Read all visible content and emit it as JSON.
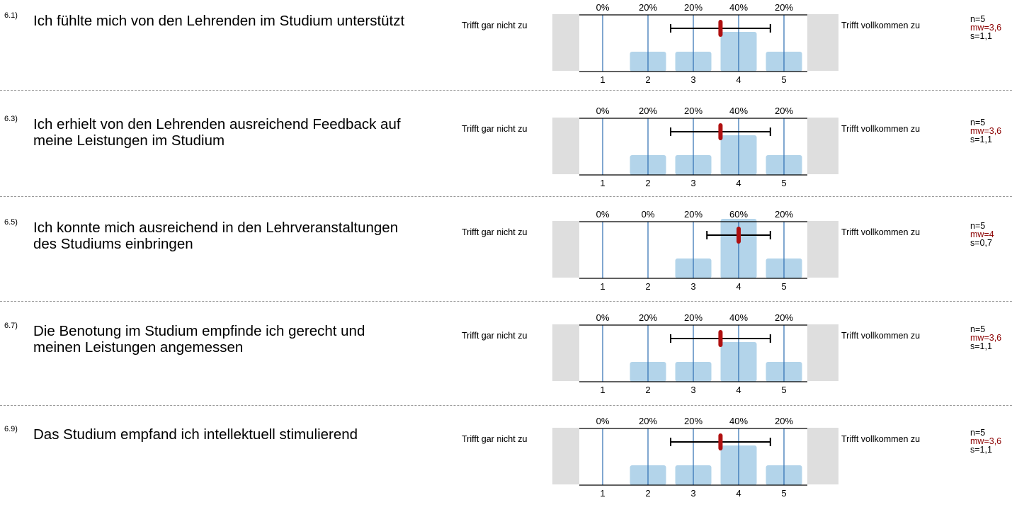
{
  "scale": {
    "left_label": "Trifft gar nicht zu",
    "right_label": "Trifft vollkommen zu",
    "ticks": [
      "1",
      "2",
      "3",
      "4",
      "5"
    ]
  },
  "items": [
    {
      "number": "6.1)",
      "text": "Ich fühlte mich von den Lehrenden im Studium unterstützt",
      "n": "n=5",
      "mw": "mw=3,6",
      "s": "s=1,1"
    },
    {
      "number": "6.3)",
      "text": "Ich erhielt von den Lehrenden ausreichend Feedback auf meine Leistungen im Studium",
      "n": "n=5",
      "mw": "mw=3,6",
      "s": "s=1,1"
    },
    {
      "number": "6.5)",
      "text": "Ich konnte mich ausreichend in den Lehrveranstaltungen des Studiums einbringen",
      "n": "n=5",
      "mw": "mw=4",
      "s": "s=0,7"
    },
    {
      "number": "6.7)",
      "text": "Die Benotung im Studium empfinde ich gerecht und meinen Leistungen angemessen",
      "n": "n=5",
      "mw": "mw=3,6",
      "s": "s=1,1"
    },
    {
      "number": "6.9)",
      "text": "Das Studium empfand ich intellektuell stimulierend",
      "n": "n=5",
      "mw": "mw=3,6",
      "s": "s=1,1"
    }
  ],
  "chart_data": [
    {
      "type": "bar",
      "categories": [
        "1",
        "2",
        "3",
        "4",
        "5"
      ],
      "values": [
        0,
        20,
        20,
        40,
        20
      ],
      "labels": [
        "0%",
        "20%",
        "20%",
        "40%",
        "20%"
      ],
      "mean": 3.6,
      "sd": 1.1,
      "n": 5,
      "ylim": [
        0,
        100
      ]
    },
    {
      "type": "bar",
      "categories": [
        "1",
        "2",
        "3",
        "4",
        "5"
      ],
      "values": [
        0,
        20,
        20,
        40,
        20
      ],
      "labels": [
        "0%",
        "20%",
        "20%",
        "40%",
        "20%"
      ],
      "mean": 3.6,
      "sd": 1.1,
      "n": 5,
      "ylim": [
        0,
        100
      ]
    },
    {
      "type": "bar",
      "categories": [
        "1",
        "2",
        "3",
        "4",
        "5"
      ],
      "values": [
        0,
        0,
        20,
        60,
        20
      ],
      "labels": [
        "0%",
        "0%",
        "20%",
        "60%",
        "20%"
      ],
      "mean": 4.0,
      "sd": 0.7,
      "n": 5,
      "ylim": [
        0,
        100
      ]
    },
    {
      "type": "bar",
      "categories": [
        "1",
        "2",
        "3",
        "4",
        "5"
      ],
      "values": [
        0,
        20,
        20,
        40,
        20
      ],
      "labels": [
        "0%",
        "20%",
        "20%",
        "40%",
        "20%"
      ],
      "mean": 3.6,
      "sd": 1.1,
      "n": 5,
      "ylim": [
        0,
        100
      ]
    },
    {
      "type": "bar",
      "categories": [
        "1",
        "2",
        "3",
        "4",
        "5"
      ],
      "values": [
        0,
        20,
        20,
        40,
        20
      ],
      "labels": [
        "0%",
        "20%",
        "20%",
        "40%",
        "20%"
      ],
      "mean": 3.6,
      "sd": 1.1,
      "n": 5,
      "ylim": [
        0,
        100
      ]
    }
  ],
  "colors": {
    "bar": "#b3d4ea",
    "gridline": "#2b6cb0",
    "mean_marker": "#b01010",
    "mw_text": "#8b0000",
    "gray_box": "#dedede"
  }
}
